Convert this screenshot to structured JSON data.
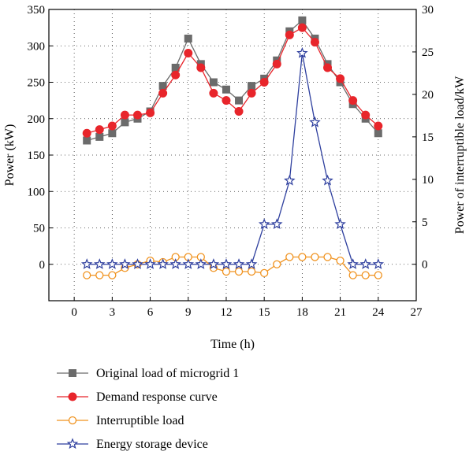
{
  "chart_data": {
    "type": "line",
    "xlabel": "Time (h)",
    "ylabel": "Power (kW)",
    "y2label": "Power of interruptible load/kW",
    "xlim": [
      -2,
      27
    ],
    "ylim": [
      -50,
      350
    ],
    "y2lim": [
      -4.29,
      30
    ],
    "xticks": [
      0,
      3,
      6,
      9,
      12,
      15,
      18,
      21,
      24,
      27
    ],
    "yticks": [
      0,
      50,
      100,
      150,
      200,
      250,
      300,
      350
    ],
    "y2ticks": [
      0,
      5,
      10,
      15,
      20,
      25,
      30
    ],
    "grid": true,
    "legend_position": "bottom",
    "series": [
      {
        "name": "Original load of microgrid 1",
        "axis": "left",
        "color": "#6b6b6b",
        "marker": "square",
        "x": [
          1,
          2,
          3,
          4,
          5,
          6,
          7,
          8,
          9,
          10,
          11,
          12,
          13,
          14,
          15,
          16,
          17,
          18,
          19,
          20,
          21,
          22,
          23,
          24
        ],
        "values": [
          170,
          175,
          180,
          195,
          200,
          210,
          245,
          270,
          310,
          275,
          250,
          240,
          225,
          245,
          255,
          280,
          320,
          335,
          310,
          275,
          250,
          220,
          200,
          180
        ]
      },
      {
        "name": "Demand response curve",
        "axis": "left",
        "color": "#e8252b",
        "marker": "circle",
        "x": [
          1,
          2,
          3,
          4,
          5,
          6,
          7,
          8,
          9,
          10,
          11,
          12,
          13,
          14,
          15,
          16,
          17,
          18,
          19,
          20,
          21,
          22,
          23,
          24
        ],
        "values": [
          180,
          185,
          190,
          205,
          205,
          208,
          235,
          260,
          290,
          270,
          235,
          225,
          210,
          235,
          250,
          275,
          315,
          325,
          305,
          270,
          255,
          225,
          205,
          190
        ]
      },
      {
        "name": "Interruptible load",
        "axis": "left",
        "color": "#f0921e",
        "marker": "open-circle",
        "x": [
          1,
          2,
          3,
          4,
          5,
          6,
          7,
          8,
          9,
          10,
          11,
          12,
          13,
          14,
          15,
          16,
          17,
          18,
          19,
          20,
          21,
          22,
          23,
          24
        ],
        "values": [
          -15,
          -15,
          -15,
          -5,
          0,
          5,
          3,
          10,
          10,
          10,
          -5,
          -10,
          -10,
          -10,
          -12,
          0,
          10,
          10,
          10,
          10,
          5,
          -15,
          -15,
          -15
        ]
      },
      {
        "name": "Energy storage device",
        "axis": "left",
        "color": "#2e3f9e",
        "marker": "open-star",
        "x": [
          1,
          2,
          3,
          4,
          5,
          6,
          7,
          8,
          9,
          10,
          11,
          12,
          13,
          14,
          15,
          16,
          17,
          18,
          19,
          20,
          21,
          22,
          23,
          24
        ],
        "values": [
          0,
          0,
          0,
          0,
          0,
          0,
          0,
          0,
          0,
          0,
          0,
          0,
          0,
          0,
          55,
          55,
          115,
          290,
          195,
          115,
          55,
          0,
          0,
          0
        ]
      }
    ]
  }
}
